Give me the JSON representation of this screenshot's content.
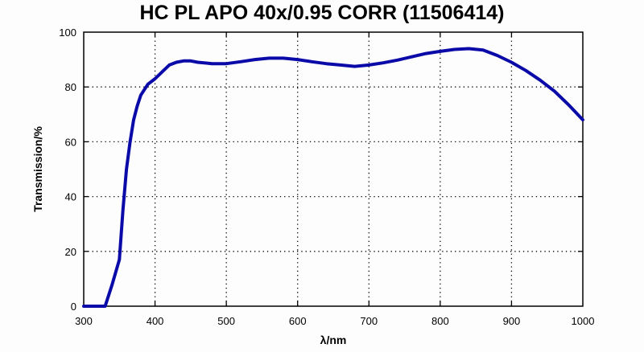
{
  "chart_data": {
    "type": "line",
    "title": "HC PL APO 40x/0.95 CORR (11506414)",
    "xlabel": "λ/nm",
    "ylabel": "Transmission/%",
    "xlim": [
      300,
      1000
    ],
    "ylim": [
      0,
      100
    ],
    "xticks": [
      300,
      400,
      500,
      600,
      700,
      800,
      900,
      1000
    ],
    "yticks": [
      0,
      20,
      40,
      60,
      80,
      100
    ],
    "grid": true,
    "grid_style": "dotted",
    "legend": null,
    "series": [
      {
        "name": "Transmission",
        "color": "#0a0aa8",
        "x": [
          300,
          320,
          330,
          340,
          350,
          355,
          360,
          365,
          370,
          375,
          380,
          390,
          400,
          410,
          420,
          430,
          440,
          450,
          460,
          480,
          500,
          520,
          540,
          560,
          580,
          600,
          620,
          640,
          660,
          680,
          700,
          720,
          740,
          760,
          780,
          800,
          820,
          840,
          860,
          880,
          900,
          920,
          940,
          960,
          980,
          1000
        ],
        "values": [
          0,
          0,
          0,
          8,
          17,
          35,
          50,
          60,
          68,
          73,
          77,
          81,
          83,
          85.5,
          88,
          89,
          89.5,
          89.5,
          89,
          88.5,
          88.5,
          89.2,
          90,
          90.5,
          90.5,
          90,
          89.2,
          88.5,
          88,
          87.5,
          88,
          88.8,
          89.8,
          91,
          92.2,
          93,
          93.7,
          94,
          93.5,
          91.5,
          89,
          86,
          82.5,
          78.5,
          73.5,
          68
        ]
      }
    ]
  }
}
